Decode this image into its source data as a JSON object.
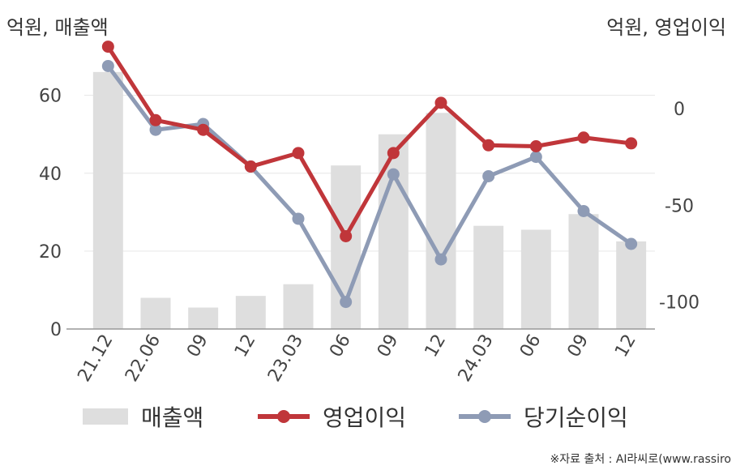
{
  "units": {
    "left": "억원, 매출액",
    "right": "억원, 영업이익"
  },
  "source": "※자료 출처 : AI라씨로(www.rassiro",
  "legend": {
    "revenue": "매출액",
    "op_profit": "영업이익",
    "net_income": "당기순이익"
  },
  "colors": {
    "revenue": "#dedede",
    "op_profit": "#c0363a",
    "net_income": "#8e9bb5",
    "grid": "#e6e6e6",
    "axis": "#999999"
  },
  "chart_data": {
    "type": "bar+line",
    "categories": [
      "21.12",
      "22.06",
      "09",
      "12",
      "23.03",
      "06",
      "09",
      "12",
      "24.03",
      "06",
      "09",
      "12"
    ],
    "left_axis": {
      "ylim": [
        0,
        72
      ],
      "ticks": [
        0,
        20,
        40,
        60
      ]
    },
    "right_axis": {
      "ylim": [
        -114,
        31
      ],
      "ticks": [
        0,
        -50,
        -100
      ]
    },
    "series": [
      {
        "name": "매출액",
        "type": "bar",
        "axis": "left",
        "values": [
          66,
          8,
          5.5,
          8.5,
          11.5,
          42,
          50,
          55.5,
          26.5,
          25.5,
          29.5,
          22.5
        ]
      },
      {
        "name": "영업이익",
        "type": "line",
        "axis": "right",
        "values": [
          32,
          -6,
          -11,
          -30,
          -23,
          -66,
          -23,
          3,
          -19,
          -19.5,
          -15,
          -18
        ]
      },
      {
        "name": "당기순이익",
        "type": "line",
        "axis": "right",
        "values": [
          22,
          -11,
          -8,
          -30,
          -57,
          -100,
          -34,
          -78,
          -35,
          -25,
          -53,
          -70
        ]
      }
    ]
  }
}
